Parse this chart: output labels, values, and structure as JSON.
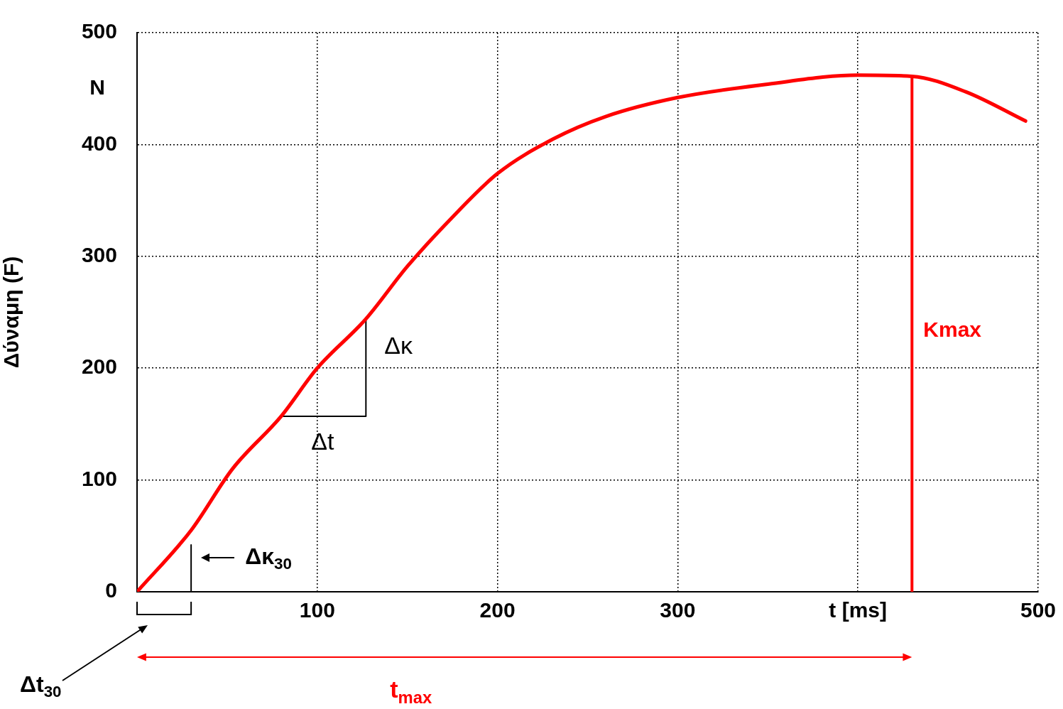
{
  "chart_data": {
    "type": "line",
    "ylabel": "Δύναμη (F)",
    "x": [
      0,
      30,
      53,
      80,
      100,
      127,
      150,
      175,
      200,
      231,
      260,
      300,
      350,
      400,
      430,
      460,
      493
    ],
    "series": [
      {
        "color": "#ff0000",
        "values": [
          0,
          55,
          110,
          157,
          200,
          244,
          291,
          335,
          374,
          405,
          425,
          442,
          454,
          462,
          461,
          447,
          421
        ]
      },
      {
        "color": "#000000",
        "x": [
          80,
          127,
          127
        ],
        "values": [
          157,
          157,
          244
        ]
      },
      {
        "color": "#000000",
        "x": [
          30,
          30
        ],
        "values": [
          0,
          42
        ]
      }
    ],
    "xlim": [
      0,
      500
    ],
    "xticks": [
      100,
      200,
      300,
      {
        "value": 400,
        "label": "t [ms]"
      },
      500
    ],
    "ylim": [
      0,
      500
    ],
    "yticks": [
      0,
      100,
      200,
      300,
      400,
      500
    ],
    "grid": true,
    "legend": false,
    "marker": "none",
    "line_style": "solid",
    "ref_lines": [
      {
        "axis": "x",
        "value": 430,
        "label": "Kmax",
        "color": "#ff0000"
      }
    ],
    "annotations": [
      "N",
      {
        "text": "Δκ",
        "x": 127,
        "y": 200
      },
      {
        "text": "Δt",
        "x": 103,
        "y": 157
      },
      "Δκ$_{30}$",
      "Δt$_{30}$",
      "t$_{max}$"
    ]
  }
}
